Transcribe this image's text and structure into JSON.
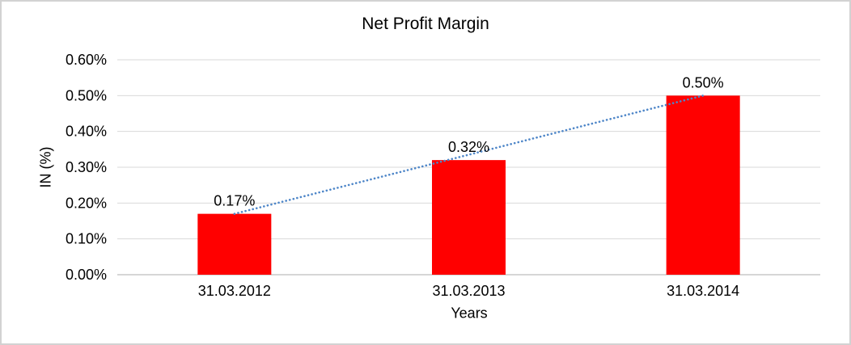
{
  "window": {
    "background_color": "#ffffff",
    "frame_border_color": "#d2d2d2"
  },
  "chart_data": {
    "type": "bar",
    "title": "Net Profit Margin",
    "xlabel": "Years",
    "ylabel": "IN (%)",
    "categories": [
      "31.03.2012",
      "31.03.2013",
      "31.03.2014"
    ],
    "values": [
      0.17,
      0.32,
      0.5
    ],
    "data_labels": [
      "0.17%",
      "0.32%",
      "0.50%"
    ],
    "ylim": [
      0,
      0.6
    ],
    "ytick_step": 0.1,
    "yticks": [
      "0.00%",
      "0.10%",
      "0.20%",
      "0.30%",
      "0.40%",
      "0.50%",
      "0.60%"
    ],
    "grid": true,
    "legend_position": "none",
    "bar_color": "#ff0000",
    "gridline_color": "#d9d9d9",
    "axis_line_color": "#c9c9c9",
    "text_color": "#000000",
    "trendline": {
      "type": "linear",
      "style": "dotted",
      "color": "#4e86c8",
      "from_value": 0.17,
      "to_value": 0.5
    }
  }
}
